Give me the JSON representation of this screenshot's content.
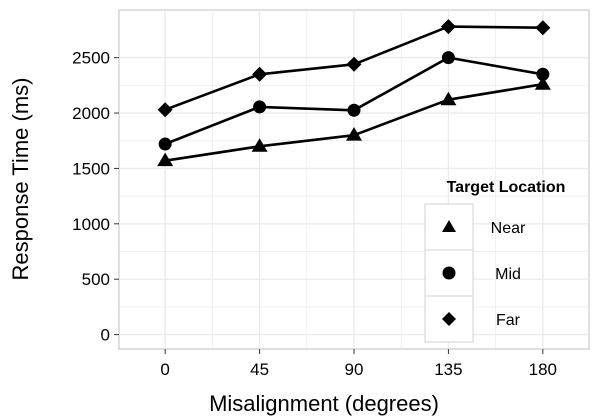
{
  "chart_data": {
    "type": "line",
    "xlabel": "Misalignment (degrees)",
    "ylabel": "Response Time (ms)",
    "x": [
      0,
      45,
      90,
      135,
      180
    ],
    "x_tick_labels": [
      "0",
      "45",
      "90",
      "135",
      "180"
    ],
    "y_ticks": [
      0,
      500,
      1000,
      1500,
      2000,
      2500
    ],
    "y_tick_labels": [
      "0",
      "500",
      "1000",
      "1500",
      "2000",
      "2500"
    ],
    "xlim": [
      -22,
      202
    ],
    "ylim": [
      -130,
      2930
    ],
    "grid": true,
    "legend": {
      "title": "Target Location",
      "placement": "bottom-right",
      "entries": [
        "Near",
        "Mid",
        "Far"
      ]
    },
    "series": [
      {
        "name": "Near",
        "marker": "triangle",
        "values": [
          1570,
          1700,
          1800,
          2120,
          2260
        ]
      },
      {
        "name": "Mid",
        "marker": "circle",
        "values": [
          1720,
          2055,
          2025,
          2500,
          2350
        ]
      },
      {
        "name": "Far",
        "marker": "diamond",
        "values": [
          2030,
          2350,
          2440,
          2780,
          2770
        ]
      }
    ],
    "colors": {
      "background": "#ffffff",
      "grid": "#ebebeb",
      "ink": "#000000",
      "frame": "#bfbfbf"
    }
  }
}
